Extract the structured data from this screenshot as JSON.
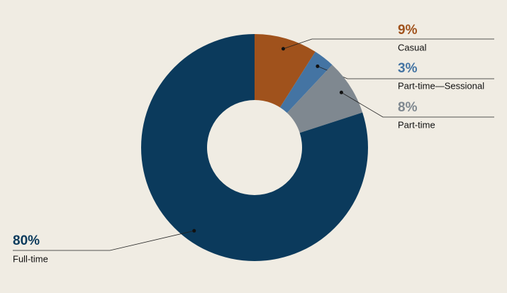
{
  "chart_data": {
    "type": "donut",
    "categories": [
      "Casual",
      "Part-time—Sessional",
      "Part-time",
      "Full-time"
    ],
    "values": [
      9,
      3,
      8,
      80
    ],
    "value_labels": [
      "9%",
      "3%",
      "8%",
      "80%"
    ],
    "colors": [
      "#a0521c",
      "#4474a3",
      "#7f8890",
      "#0b3a5c"
    ]
  }
}
